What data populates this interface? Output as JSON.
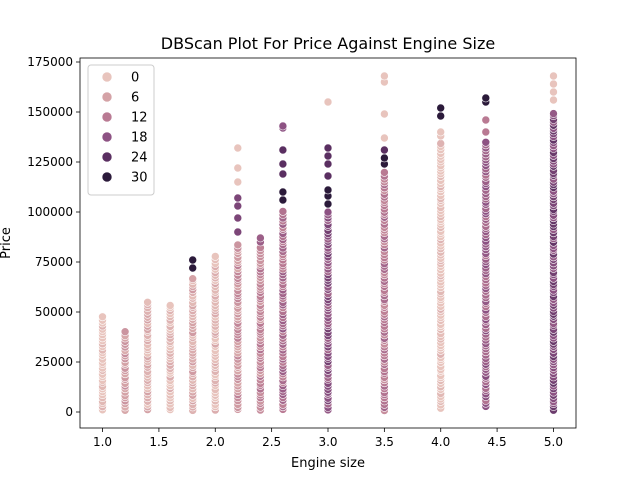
{
  "chart_data": {
    "type": "scatter",
    "title": "DBScan Plot For Price Against Engine Size",
    "xlabel": "Engine size",
    "ylabel": "Price",
    "xlim": [
      0.8,
      5.2
    ],
    "ylim": [
      -8000,
      177000
    ],
    "xticks": [
      {
        "value": 1.0,
        "label": "1.0"
      },
      {
        "value": 1.5,
        "label": "1.5"
      },
      {
        "value": 2.0,
        "label": "2.0"
      },
      {
        "value": 2.5,
        "label": "2.5"
      },
      {
        "value": 3.0,
        "label": "3.0"
      },
      {
        "value": 3.5,
        "label": "3.5"
      },
      {
        "value": 4.0,
        "label": "4.0"
      },
      {
        "value": 4.5,
        "label": "4.5"
      },
      {
        "value": 5.0,
        "label": "5.0"
      }
    ],
    "yticks": [
      {
        "value": 0,
        "label": "0"
      },
      {
        "value": 25000,
        "label": "25000"
      },
      {
        "value": 50000,
        "label": "50000"
      },
      {
        "value": 75000,
        "label": "75000"
      },
      {
        "value": 100000,
        "label": "100000"
      },
      {
        "value": 125000,
        "label": "125000"
      },
      {
        "value": 150000,
        "label": "150000"
      },
      {
        "value": 175000,
        "label": "175000"
      }
    ],
    "grid": false,
    "legend": {
      "position": "top-left",
      "entries": [
        {
          "label": "0",
          "color": "#e8c4bd"
        },
        {
          "label": "6",
          "color": "#d4a2a6"
        },
        {
          "label": "12",
          "color": "#b97a93"
        },
        {
          "label": "18",
          "color": "#8d5283"
        },
        {
          "label": "24",
          "color": "#5a2f61"
        },
        {
          "label": "30",
          "color": "#2b1a3a"
        }
      ]
    },
    "columns": [
      {
        "x": 1.0,
        "ymin": 1000,
        "ymax": 48000,
        "cluster": 0
      },
      {
        "x": 1.2,
        "ymin": 1000,
        "ymax": 40000,
        "cluster": 6
      },
      {
        "x": 1.4,
        "ymin": 1000,
        "ymax": 56000,
        "cluster": 3
      },
      {
        "x": 1.6,
        "ymin": 1000,
        "ymax": 54000,
        "cluster": 1
      },
      {
        "x": 1.8,
        "ymin": 1000,
        "ymax": 67000,
        "cluster": 4,
        "extra": [
          {
            "y": 72000,
            "cluster": 30
          },
          {
            "y": 76000,
            "cluster": 30
          }
        ]
      },
      {
        "x": 2.0,
        "ymin": 1000,
        "ymax": 78000,
        "cluster": 2
      },
      {
        "x": 2.2,
        "ymin": 1000,
        "ymax": 84000,
        "cluster": 8,
        "extra": [
          {
            "y": 90000,
            "cluster": 20
          },
          {
            "y": 97000,
            "cluster": 20
          },
          {
            "y": 103000,
            "cluster": 20
          },
          {
            "y": 107000,
            "cluster": 20
          },
          {
            "y": 115000,
            "cluster": 0
          },
          {
            "y": 122000,
            "cluster": 0
          },
          {
            "y": 132000,
            "cluster": 0
          }
        ]
      },
      {
        "x": 2.4,
        "ymin": 1000,
        "ymax": 82000,
        "cluster": 10,
        "extra": [
          {
            "y": 85000,
            "cluster": 16
          },
          {
            "y": 87000,
            "cluster": 16
          }
        ]
      },
      {
        "x": 2.6,
        "ymin": 1000,
        "ymax": 100000,
        "cluster": 14,
        "extra": [
          {
            "y": 106000,
            "cluster": 30
          },
          {
            "y": 110000,
            "cluster": 30
          },
          {
            "y": 119000,
            "cluster": 24
          },
          {
            "y": 124000,
            "cluster": 24
          },
          {
            "y": 131000,
            "cluster": 24
          },
          {
            "y": 142000,
            "cluster": 18
          },
          {
            "y": 143000,
            "cluster": 18
          }
        ]
      },
      {
        "x": 3.0,
        "ymin": 1000,
        "ymax": 100000,
        "cluster": 18,
        "extra": [
          {
            "y": 104000,
            "cluster": 30
          },
          {
            "y": 108000,
            "cluster": 30
          },
          {
            "y": 111000,
            "cluster": 30
          },
          {
            "y": 118000,
            "cluster": 24
          },
          {
            "y": 124000,
            "cluster": 24
          },
          {
            "y": 128000,
            "cluster": 24
          },
          {
            "y": 132000,
            "cluster": 24
          },
          {
            "y": 155000,
            "cluster": 0
          }
        ]
      },
      {
        "x": 3.5,
        "ymin": 1000,
        "ymax": 120000,
        "cluster": 12,
        "extra": [
          {
            "y": 124000,
            "cluster": 30
          },
          {
            "y": 127000,
            "cluster": 30
          },
          {
            "y": 131000,
            "cluster": 24
          },
          {
            "y": 137000,
            "cluster": 0
          },
          {
            "y": 149000,
            "cluster": 0
          },
          {
            "y": 165000,
            "cluster": 0
          },
          {
            "y": 168000,
            "cluster": 0
          }
        ]
      },
      {
        "x": 4.0,
        "ymin": 2000,
        "ymax": 135000,
        "cluster": 0,
        "extra": [
          {
            "y": 138000,
            "cluster": 0
          },
          {
            "y": 140000,
            "cluster": 0
          },
          {
            "y": 148000,
            "cluster": 30
          },
          {
            "y": 152000,
            "cluster": 30
          }
        ]
      },
      {
        "x": 4.4,
        "ymin": 3000,
        "ymax": 135000,
        "cluster": 16,
        "extra": [
          {
            "y": 140000,
            "cluster": 12
          },
          {
            "y": 146000,
            "cluster": 12
          },
          {
            "y": 155000,
            "cluster": 30
          },
          {
            "y": 157000,
            "cluster": 30
          }
        ]
      },
      {
        "x": 5.0,
        "ymin": 1000,
        "ymax": 150000,
        "cluster": 20,
        "extra": [
          {
            "y": 156000,
            "cluster": 0
          },
          {
            "y": 160000,
            "cluster": 0
          },
          {
            "y": 164000,
            "cluster": 0
          },
          {
            "y": 168000,
            "cluster": 0
          }
        ]
      }
    ]
  }
}
